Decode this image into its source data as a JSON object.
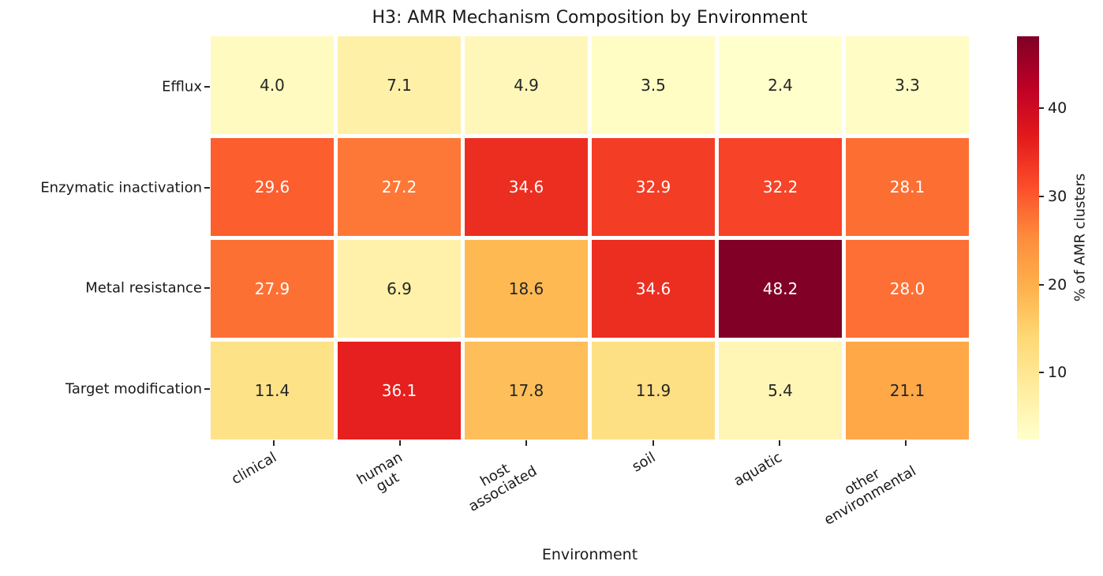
{
  "chart_data": {
    "type": "heatmap",
    "title": "H3: AMR Mechanism Composition by Environment",
    "xlabel": "Environment",
    "ylabel": "",
    "colorbar_label": "% of AMR clusters",
    "row_labels": [
      "Efflux",
      "Enzymatic inactivation",
      "Metal resistance",
      "Target modification"
    ],
    "col_labels": [
      [
        "clinical"
      ],
      [
        "human",
        "gut"
      ],
      [
        "host",
        "associated"
      ],
      [
        "soil"
      ],
      [
        "aquatic"
      ],
      [
        "other",
        "environmental"
      ]
    ],
    "values": [
      [
        4.0,
        7.1,
        4.9,
        3.5,
        2.4,
        3.3
      ],
      [
        29.6,
        27.2,
        34.6,
        32.9,
        32.2,
        28.1
      ],
      [
        27.9,
        6.9,
        18.6,
        34.6,
        48.2,
        28.0
      ],
      [
        11.4,
        36.1,
        17.8,
        11.9,
        5.4,
        21.1
      ]
    ],
    "value_decimals": 1,
    "vmin": 2.4,
    "vmax": 48.2,
    "colorbar_ticks": [
      10,
      20,
      30,
      40
    ],
    "colormap": "YlOrRd",
    "colormap_stops": [
      "#FFFFCC",
      "#FFEDA0",
      "#FED976",
      "#FEB24C",
      "#FD8D3C",
      "#FC4E2A",
      "#E31A1C",
      "#BD0026",
      "#800026"
    ],
    "grid_line_color": "#FFFFFF",
    "cell_text_light_bg": "#262626",
    "cell_text_dark_bg": "#FFFFFF",
    "axis_text_color": "#1a1a1a"
  }
}
